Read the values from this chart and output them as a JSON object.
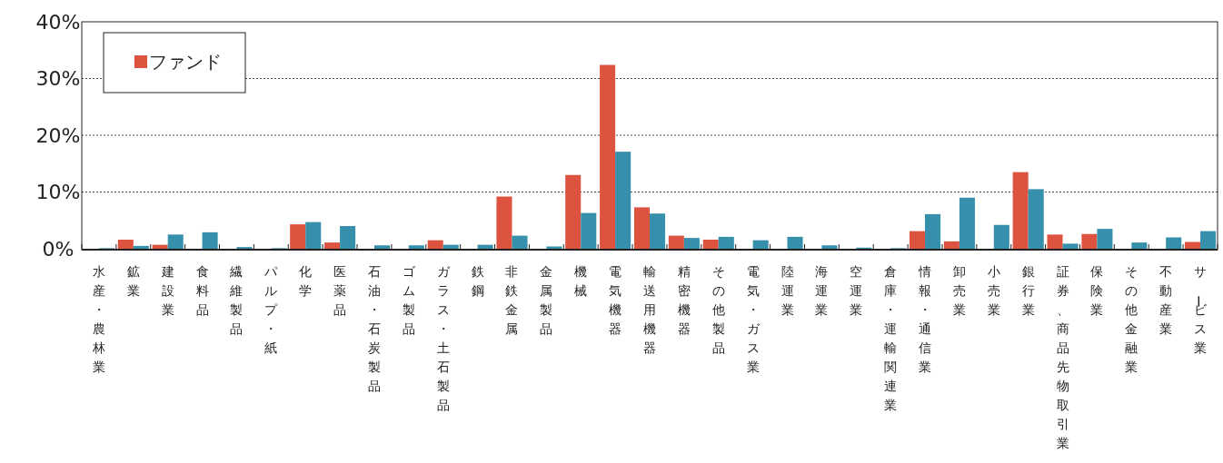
{
  "chart_data": {
    "type": "bar",
    "categories": [
      "水産・農林業",
      "鉱業",
      "建設業",
      "食料品",
      "繊維製品",
      "パルプ・紙",
      "化学",
      "医薬品",
      "石油・石炭製品",
      "ゴム製品",
      "ガラス・土石製品",
      "鉄鋼",
      "非鉄金属",
      "金属製品",
      "機械",
      "電気機器",
      "輸送用機器",
      "精密機器",
      "その他製品",
      "電気・ガス業",
      "陸運業",
      "海運業",
      "空運業",
      "倉庫・運輸関連業",
      "情報・通信業",
      "卸売業",
      "小売業",
      "銀行業",
      "証券、商品先物取引業",
      "保険業",
      "その他金融業",
      "不動産業",
      "サービス業"
    ],
    "series": [
      {
        "name": "ファンド",
        "color": "#de5240",
        "values": [
          0,
          1.6,
          0.7,
          0,
          0,
          0,
          4.3,
          1.1,
          0,
          0,
          1.5,
          0,
          9.2,
          0,
          13.0,
          32.4,
          7.3,
          2.3,
          1.6,
          0,
          0,
          0,
          0,
          0,
          3.1,
          1.3,
          0,
          13.5,
          2.5,
          2.6,
          0,
          0,
          1.2
        ]
      },
      {
        "color": "#368fab",
        "values": [
          0.1,
          0.5,
          2.5,
          2.9,
          0.3,
          0.1,
          4.7,
          4.0,
          0.6,
          0.6,
          0.7,
          0.7,
          2.3,
          0.4,
          6.3,
          17.1,
          6.2,
          1.9,
          2.1,
          1.5,
          2.1,
          0.6,
          0.2,
          0.1,
          6.1,
          9.0,
          4.2,
          10.5,
          0.9,
          3.5,
          1.1,
          2.0,
          3.1
        ]
      }
    ],
    "ylim": [
      0,
      40
    ],
    "yticks": [
      {
        "value": 0,
        "label": "0%"
      },
      {
        "value": 10,
        "label": "10%"
      },
      {
        "value": 20,
        "label": "20%"
      },
      {
        "value": 30,
        "label": "30%"
      },
      {
        "value": 40,
        "label": "40%"
      }
    ],
    "grid": "y",
    "legend": "top left"
  }
}
